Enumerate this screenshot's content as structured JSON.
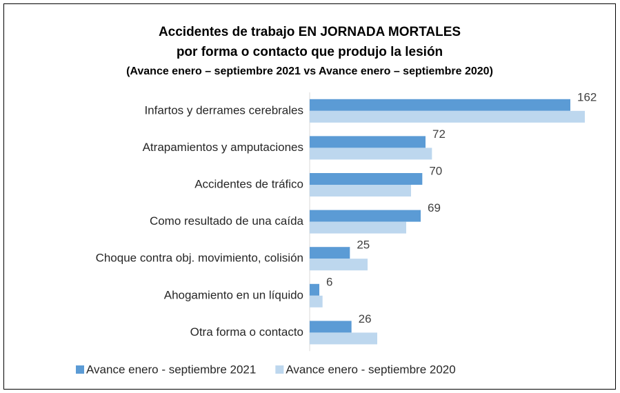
{
  "chart_data": {
    "type": "barh",
    "title": "Accidentes de trabajo EN JORNADA MORTALES",
    "subtitle": "por forma o contacto que produjo la lesión",
    "subtitle2": "(Avance enero – septiembre 2021 vs Avance enero – septiembre 2020)",
    "categories": [
      "Infartos y derrames cerebrales",
      "Atrapamientos y amputaciones",
      "Accidentes de tráfico",
      "Como resultado de una caída",
      "Choque contra obj. movimiento, colisión",
      "Ahogamiento en un líquido",
      "Otra forma o contacto"
    ],
    "series": [
      {
        "name": "Avance enero - septiembre 2021",
        "color": "#5b9bd5",
        "values": [
          162,
          72,
          70,
          69,
          25,
          6,
          26
        ]
      },
      {
        "name": "Avance enero - septiembre 2020",
        "color": "#bdd7ee",
        "values": [
          171,
          76,
          63,
          60,
          36,
          8,
          42
        ]
      }
    ],
    "xlim": [
      0,
      180
    ],
    "legend": "bottom"
  }
}
